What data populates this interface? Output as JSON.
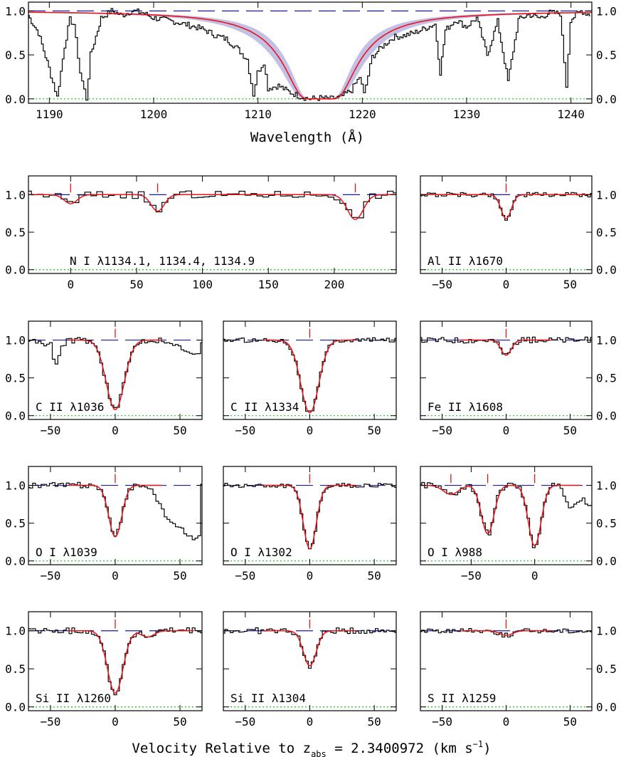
{
  "colors": {
    "data": "#000000",
    "model": "#e8141a",
    "error_band": "#b9b5e2",
    "continuum": "#1a1a9e",
    "zero_level": "#19c419",
    "tick_marker": "#e8141a"
  },
  "chart_data": [
    {
      "type": "line",
      "name": "lyman-alpha",
      "xlabel": "Wavelength (Å)",
      "xlim": [
        1188,
        1242
      ],
      "ylim": [
        -0.05,
        1.1
      ],
      "xticks": [
        1190,
        1200,
        1210,
        1220,
        1230,
        1240
      ],
      "xtick_labels": [
        "1190",
        "1200",
        "1210",
        "1220",
        "1230",
        "1240"
      ],
      "yticks": [
        0.0,
        0.5,
        1.0
      ],
      "ytick_labels": [
        "0.0",
        "0.5",
        "1.0"
      ],
      "dla_center": 1216.0,
      "data_x": [
        1188,
        1189,
        1190,
        1190.8,
        1191.5,
        1192,
        1192.4,
        1193,
        1193.6,
        1194,
        1195,
        1196,
        1197,
        1198,
        1199,
        1200,
        1201,
        1202,
        1203,
        1204,
        1205,
        1206,
        1207,
        1208,
        1209,
        1209.6,
        1210,
        1210.6,
        1211,
        1212,
        1213,
        1214,
        1215,
        1216,
        1217,
        1218,
        1219,
        1219.8,
        1220.2,
        1221,
        1222,
        1223,
        1224,
        1225,
        1226,
        1227,
        1227.5,
        1228,
        1229,
        1230,
        1231,
        1232,
        1233,
        1234,
        1235,
        1236,
        1237,
        1238,
        1239,
        1239.6,
        1240,
        1241,
        1242
      ],
      "data_y": [
        0.95,
        0.75,
        0.35,
        0.02,
        0.6,
        0.9,
        0.85,
        0.3,
        0.0,
        0.5,
        0.92,
        1.0,
        0.95,
        1.0,
        0.98,
        0.92,
        0.9,
        0.88,
        0.85,
        0.82,
        0.78,
        0.72,
        0.68,
        0.58,
        0.45,
        0.05,
        0.3,
        0.42,
        0.12,
        0.15,
        0.08,
        0.03,
        0.0,
        0.01,
        0.0,
        0.02,
        0.1,
        0.25,
        0.05,
        0.48,
        0.6,
        0.7,
        0.72,
        0.75,
        0.8,
        0.85,
        0.3,
        0.78,
        0.9,
        0.82,
        0.92,
        0.5,
        0.88,
        0.2,
        0.9,
        0.96,
        0.92,
        0.98,
        0.97,
        0.15,
        0.9,
        1.0,
        0.95
      ],
      "continuum": 1.0,
      "zero_level": 0.0
    },
    {
      "type": "line",
      "name": "N I",
      "label": "N I λ1134.1, 1134.4, 1134.9",
      "xlim": [
        -32,
        247
      ],
      "ylim": [
        -0.05,
        1.25
      ],
      "xticks": [
        0,
        50,
        100,
        150,
        200
      ],
      "xtick_labels": [
        "0",
        "50",
        "100",
        "150",
        "200"
      ],
      "yticks": [
        0.0,
        0.5,
        1.0
      ],
      "ytick_labels": [
        "0.0",
        "0.5",
        "1.0"
      ],
      "show_x_labels": true,
      "left_labels": true,
      "right_labels": false,
      "markers": [
        0,
        66,
        216
      ],
      "components": [
        {
          "v": 0,
          "depth": 0.12,
          "w": 5
        },
        {
          "v": 66,
          "depth": 0.22,
          "w": 5
        },
        {
          "v": 216,
          "depth": 0.33,
          "w": 6
        }
      ],
      "noise": 0.05,
      "tail": []
    },
    {
      "type": "line",
      "name": "Al II",
      "label": "Al II λ1670",
      "xlim": [
        -67,
        67
      ],
      "ylim": [
        -0.05,
        1.25
      ],
      "xticks": [
        -50,
        0,
        50
      ],
      "xtick_labels": [
        "−50",
        "0",
        "50"
      ],
      "yticks": [
        0.0,
        0.5,
        1.0
      ],
      "ytick_labels": [
        "0.0",
        "0.5",
        "1.0"
      ],
      "show_x_labels": true,
      "left_labels": false,
      "right_labels": true,
      "markers": [
        0
      ],
      "components": [
        {
          "v": 0,
          "depth": 0.32,
          "w": 4
        }
      ],
      "noise": 0.03,
      "tail": []
    },
    {
      "type": "line",
      "name": "C II 1036",
      "label": "C II λ1036",
      "xlim": [
        -67,
        67
      ],
      "ylim": [
        -0.05,
        1.25
      ],
      "xticks": [
        -50,
        0,
        50
      ],
      "xtick_labels": [
        "−50",
        "0",
        "50"
      ],
      "yticks": [
        0.0,
        0.5,
        1.0
      ],
      "ytick_labels": [
        "0.0",
        "0.5",
        "1.0"
      ],
      "show_x_labels": true,
      "left_labels": true,
      "right_labels": false,
      "markers": [
        0
      ],
      "components": [
        {
          "v": 0,
          "depth": 0.92,
          "w": 7
        }
      ],
      "noise": 0.04,
      "tail": [
        [
          -67,
          1.0
        ],
        [
          -50,
          0.95
        ],
        [
          -46,
          0.68
        ],
        [
          -42,
          0.9
        ],
        [
          -36,
          1.0
        ]
      ],
      "tail_right": [
        [
          36,
          1.02
        ],
        [
          40,
          0.98
        ],
        [
          50,
          0.9
        ],
        [
          58,
          0.85
        ],
        [
          67,
          0.82
        ]
      ]
    },
    {
      "type": "line",
      "name": "C II 1334",
      "label": "C II λ1334",
      "xlim": [
        -67,
        67
      ],
      "ylim": [
        -0.05,
        1.25
      ],
      "xticks": [
        -50,
        0,
        50
      ],
      "xtick_labels": [
        "−50",
        "0",
        "50"
      ],
      "yticks": [
        0.0,
        0.5,
        1.0
      ],
      "ytick_labels": [
        "0.0",
        "0.5",
        "1.0"
      ],
      "show_x_labels": true,
      "left_labels": false,
      "right_labels": false,
      "markers": [
        0
      ],
      "components": [
        {
          "v": 0,
          "depth": 0.96,
          "w": 7
        }
      ],
      "noise": 0.03,
      "tail": []
    },
    {
      "type": "line",
      "name": "Fe II",
      "label": "Fe II λ1608",
      "xlim": [
        -67,
        67
      ],
      "ylim": [
        -0.05,
        1.25
      ],
      "xticks": [
        -50,
        0,
        50
      ],
      "xtick_labels": [
        "−50",
        "0",
        "50"
      ],
      "yticks": [
        0.0,
        0.5,
        1.0
      ],
      "ytick_labels": [
        "0.0",
        "0.5",
        "1.0"
      ],
      "show_x_labels": true,
      "left_labels": false,
      "right_labels": true,
      "markers": [
        0
      ],
      "components": [
        {
          "v": 0,
          "depth": 0.2,
          "w": 4
        }
      ],
      "noise": 0.04,
      "tail": []
    },
    {
      "type": "line",
      "name": "O I 1039",
      "label": "O I λ1039",
      "xlim": [
        -67,
        67
      ],
      "ylim": [
        -0.05,
        1.25
      ],
      "xticks": [
        -50,
        0,
        50
      ],
      "xtick_labels": [
        "−50",
        "0",
        "50"
      ],
      "yticks": [
        0.0,
        0.5,
        1.0
      ],
      "ytick_labels": [
        "0.0",
        "0.5",
        "1.0"
      ],
      "show_x_labels": true,
      "left_labels": true,
      "right_labels": false,
      "markers": [
        0
      ],
      "components": [
        {
          "v": 0,
          "depth": 0.68,
          "w": 5
        }
      ],
      "noise": 0.04,
      "tail": [],
      "tail_right": [
        [
          24,
          1.0
        ],
        [
          30,
          0.9
        ],
        [
          36,
          0.72
        ],
        [
          42,
          0.5
        ],
        [
          48,
          0.42
        ],
        [
          55,
          0.38
        ],
        [
          62,
          0.3
        ],
        [
          67,
          0.35
        ]
      ]
    },
    {
      "type": "line",
      "name": "O I 1302",
      "label": "O I λ1302",
      "xlim": [
        -67,
        67
      ],
      "ylim": [
        -0.05,
        1.25
      ],
      "xticks": [
        -50,
        0,
        50
      ],
      "xtick_labels": [
        "−50",
        "0",
        "50"
      ],
      "yticks": [
        0.0,
        0.5,
        1.0
      ],
      "ytick_labels": [
        "0.0",
        "0.5",
        "1.0"
      ],
      "show_x_labels": true,
      "left_labels": false,
      "right_labels": false,
      "markers": [
        0
      ],
      "components": [
        {
          "v": 0,
          "depth": 0.84,
          "w": 5
        }
      ],
      "noise": 0.03,
      "tail": []
    },
    {
      "type": "line",
      "name": "O I 988",
      "label": "O I λ988",
      "xlim": [
        -90,
        45
      ],
      "ylim": [
        -0.05,
        1.25
      ],
      "xticks": [
        -50,
        0
      ],
      "xtick_labels": [
        "−50",
        "0"
      ],
      "yticks": [
        0.0,
        0.5,
        1.0
      ],
      "ytick_labels": [
        "0.0",
        "0.5",
        "1.0"
      ],
      "show_x_labels": true,
      "left_labels": false,
      "right_labels": true,
      "markers": [
        -66,
        -37,
        0
      ],
      "components": [
        {
          "v": -66,
          "depth": 0.12,
          "w": 6
        },
        {
          "v": -37,
          "depth": 0.64,
          "w": 5
        },
        {
          "v": 0,
          "depth": 0.8,
          "w": 5
        }
      ],
      "noise": 0.05,
      "tail": [],
      "tail_right": [
        [
          18,
          1.0
        ],
        [
          24,
          0.85
        ],
        [
          28,
          0.7
        ],
        [
          32,
          0.78
        ],
        [
          38,
          0.8
        ],
        [
          45,
          0.72
        ]
      ]
    },
    {
      "type": "line",
      "name": "Si II 1260",
      "label": "Si II λ1260",
      "xlim": [
        -67,
        67
      ],
      "ylim": [
        -0.05,
        1.25
      ],
      "xticks": [
        -50,
        0,
        50
      ],
      "xtick_labels": [
        "−50",
        "0",
        "50"
      ],
      "yticks": [
        0.0,
        0.5,
        1.0
      ],
      "ytick_labels": [
        "0.0",
        "0.5",
        "1.0"
      ],
      "show_x_labels": true,
      "left_labels": true,
      "right_labels": false,
      "markers": [
        0
      ],
      "components": [
        {
          "v": 0,
          "depth": 0.82,
          "w": 6
        },
        {
          "v": 25,
          "depth": 0.08,
          "w": 5
        }
      ],
      "noise": 0.04,
      "tail": []
    },
    {
      "type": "line",
      "name": "Si II 1304",
      "label": "Si II λ1304",
      "xlim": [
        -67,
        67
      ],
      "ylim": [
        -0.05,
        1.25
      ],
      "xticks": [
        -50,
        0,
        50
      ],
      "xtick_labels": [
        "−50",
        "0",
        "50"
      ],
      "yticks": [
        0.0,
        0.5,
        1.0
      ],
      "ytick_labels": [
        "0.0",
        "0.5",
        "1.0"
      ],
      "show_x_labels": true,
      "left_labels": false,
      "right_labels": false,
      "markers": [
        0
      ],
      "components": [
        {
          "v": 0,
          "depth": 0.46,
          "w": 5
        }
      ],
      "noise": 0.04,
      "tail": []
    },
    {
      "type": "line",
      "name": "S II",
      "label": "S II λ1259",
      "xlim": [
        -67,
        67
      ],
      "ylim": [
        -0.05,
        1.25
      ],
      "xticks": [
        -50,
        0,
        50
      ],
      "xtick_labels": [
        "−50",
        "0",
        "50"
      ],
      "yticks": [
        0.0,
        0.5,
        1.0
      ],
      "ytick_labels": [
        "0.0",
        "0.5",
        "1.0"
      ],
      "show_x_labels": true,
      "left_labels": false,
      "right_labels": true,
      "markers": [
        0
      ],
      "components": [
        {
          "v": 0,
          "depth": 0.06,
          "w": 5
        }
      ],
      "noise": 0.03,
      "tail": []
    }
  ],
  "bottom_label": {
    "prefix": "Velocity Relative to z",
    "subscript": "abs",
    "suffix": " = 2.3400972 (km s",
    "superscript": "−1",
    "close": ")"
  }
}
